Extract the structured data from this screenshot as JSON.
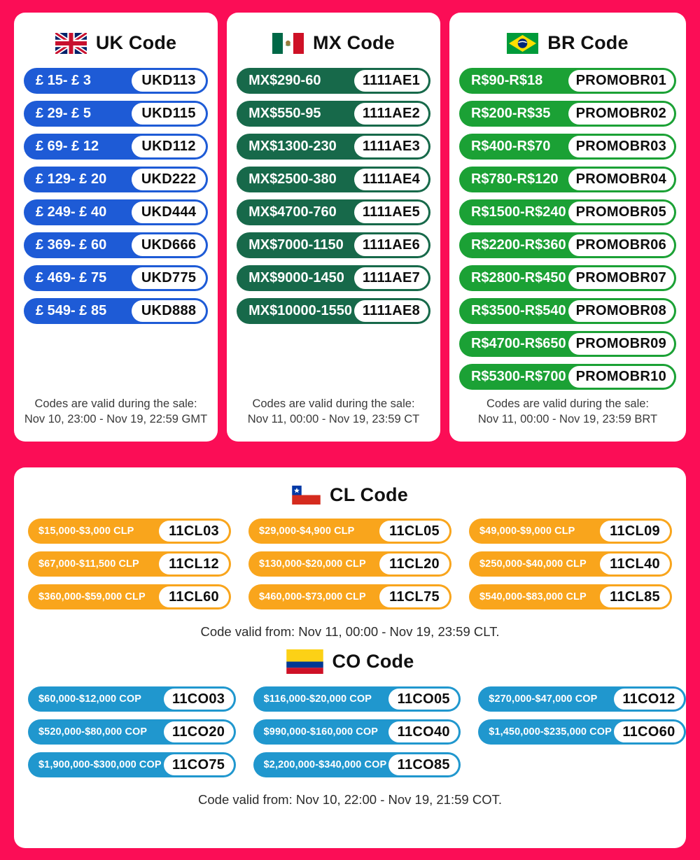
{
  "colors": {
    "bg": "#FB0D56",
    "uk": "#1E5BD6",
    "mx": "#17694A",
    "br": "#1BA135",
    "cl": "#F9A51C",
    "co": "#2097CE",
    "footer-text": "#3A3A3A"
  },
  "cards": [
    {
      "title": "UK Code",
      "flag": "uk-flag",
      "rows": [
        {
          "label": "£ 15- £ 3",
          "code": "UKD113"
        },
        {
          "label": "£ 29- £ 5",
          "code": "UKD115"
        },
        {
          "label": "£ 69- £ 12",
          "code": "UKD112"
        },
        {
          "label": "£ 129- £ 20",
          "code": "UKD222"
        },
        {
          "label": "£ 249- £ 40",
          "code": "UKD444"
        },
        {
          "label": "£ 369- £ 60",
          "code": "UKD666"
        },
        {
          "label": "£ 469- £ 75",
          "code": "UKD775"
        },
        {
          "label": "£ 549- £ 85",
          "code": "UKD888"
        }
      ],
      "footer_line1": "Codes are valid during the sale:",
      "footer_line2": "Nov 10, 23:00 - Nov 19, 22:59 GMT"
    },
    {
      "title": "MX Code",
      "flag": "mx-flag",
      "rows": [
        {
          "label": "MX$290-60",
          "code": "1111AE1"
        },
        {
          "label": "MX$550-95",
          "code": "1111AE2"
        },
        {
          "label": "MX$1300-230",
          "code": "1111AE3"
        },
        {
          "label": "MX$2500-380",
          "code": "1111AE4"
        },
        {
          "label": "MX$4700-760",
          "code": "1111AE5"
        },
        {
          "label": "MX$7000-1150",
          "code": "1111AE6"
        },
        {
          "label": "MX$9000-1450",
          "code": "1111AE7"
        },
        {
          "label": "MX$10000-1550",
          "code": "1111AE8"
        }
      ],
      "footer_line1": "Codes are valid during the sale:",
      "footer_line2": "Nov 11, 00:00 - Nov 19, 23:59 CT"
    },
    {
      "title": "BR Code",
      "flag": "br-flag",
      "rows": [
        {
          "label": "R$90-R$18",
          "code": "PROMOBR01"
        },
        {
          "label": "R$200-R$35",
          "code": "PROMOBR02"
        },
        {
          "label": "R$400-R$70",
          "code": "PROMOBR03"
        },
        {
          "label": "R$780-R$120",
          "code": "PROMOBR04"
        },
        {
          "label": "R$1500-R$240",
          "code": "PROMOBR05"
        },
        {
          "label": "R$2200-R$360",
          "code": "PROMOBR06"
        },
        {
          "label": "R$2800-R$450",
          "code": "PROMOBR07"
        },
        {
          "label": "R$3500-R$540",
          "code": "PROMOBR08"
        },
        {
          "label": "R$4700-R$650",
          "code": "PROMOBR09"
        },
        {
          "label": "R$5300-R$700",
          "code": "PROMOBR10"
        }
      ],
      "footer_line1": "Codes are valid during the sale:",
      "footer_line2": "Nov 11, 00:00 - Nov 19, 23:59 BRT"
    }
  ],
  "sections": [
    {
      "title": "CL Code",
      "flag": "cl-flag",
      "rows": [
        {
          "label": "$15,000-$3,000 CLP",
          "code": "11CL03"
        },
        {
          "label": "$29,000-$4,900 CLP",
          "code": "11CL05"
        },
        {
          "label": "$49,000-$9,000 CLP",
          "code": "11CL09"
        },
        {
          "label": "$67,000-$11,500 CLP",
          "code": "11CL12"
        },
        {
          "label": "$130,000-$20,000 CLP",
          "code": "11CL20"
        },
        {
          "label": "$250,000-$40,000 CLP",
          "code": "11CL40"
        },
        {
          "label": "$360,000-$59,000 CLP",
          "code": "11CL60"
        },
        {
          "label": "$460,000-$73,000 CLP",
          "code": "11CL75"
        },
        {
          "label": "$540,000-$83,000 CLP",
          "code": "11CL85"
        }
      ],
      "footer": "Code valid from: Nov 11, 00:00 - Nov 19, 23:59 CLT."
    },
    {
      "title": "CO Code",
      "flag": "co-flag",
      "rows": [
        {
          "label": "$60,000-$12,000 COP",
          "code": "11CO03"
        },
        {
          "label": "$116,000-$20,000 COP",
          "code": "11CO05"
        },
        {
          "label": "$270,000-$47,000 COP",
          "code": "11CO12"
        },
        {
          "label": "$520,000-$80,000 COP",
          "code": "11CO20"
        },
        {
          "label": "$990,000-$160,000 COP",
          "code": "11CO40"
        },
        {
          "label": "$1,450,000-$235,000 COP",
          "code": "11CO60"
        },
        {
          "label": "$1,900,000-$300,000 COP",
          "code": "11CO75"
        },
        {
          "label": "$2,200,000-$340,000 COP",
          "code": "11CO85"
        }
      ],
      "footer": "Code valid from: Nov 10, 22:00 - Nov 19, 21:59 COT."
    }
  ]
}
